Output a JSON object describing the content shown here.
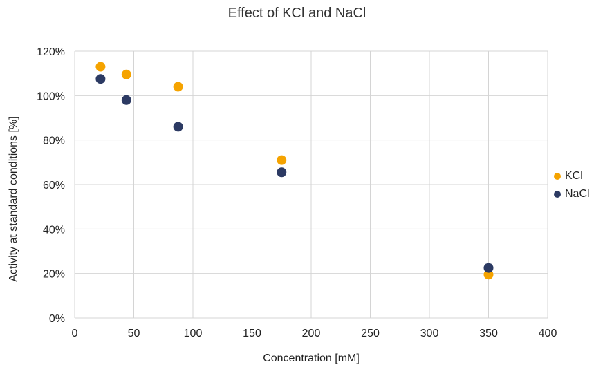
{
  "chart_data": {
    "type": "scatter",
    "title": "Effect of KCl and NaCl",
    "xlabel": "Concentration [mM]",
    "ylabel": "Activity at standard conditions [%]",
    "xlim": [
      0,
      400
    ],
    "ylim": [
      0,
      120
    ],
    "xticks": [
      0,
      50,
      100,
      150,
      200,
      250,
      300,
      350,
      400
    ],
    "yticks": [
      0,
      20,
      40,
      60,
      80,
      100,
      120
    ],
    "ytick_suffix": "%",
    "grid": true,
    "legend_position": "right",
    "series": [
      {
        "name": "KCl",
        "color": "#F5A300",
        "x": [
          21.875,
          43.75,
          87.5,
          175,
          350
        ],
        "y": [
          113,
          109.5,
          104,
          71,
          19.5
        ]
      },
      {
        "name": "NaCl",
        "color": "#2C3A63",
        "x": [
          21.875,
          43.75,
          87.5,
          175,
          350
        ],
        "y": [
          107.5,
          98,
          86,
          65.5,
          22.5
        ]
      }
    ]
  }
}
